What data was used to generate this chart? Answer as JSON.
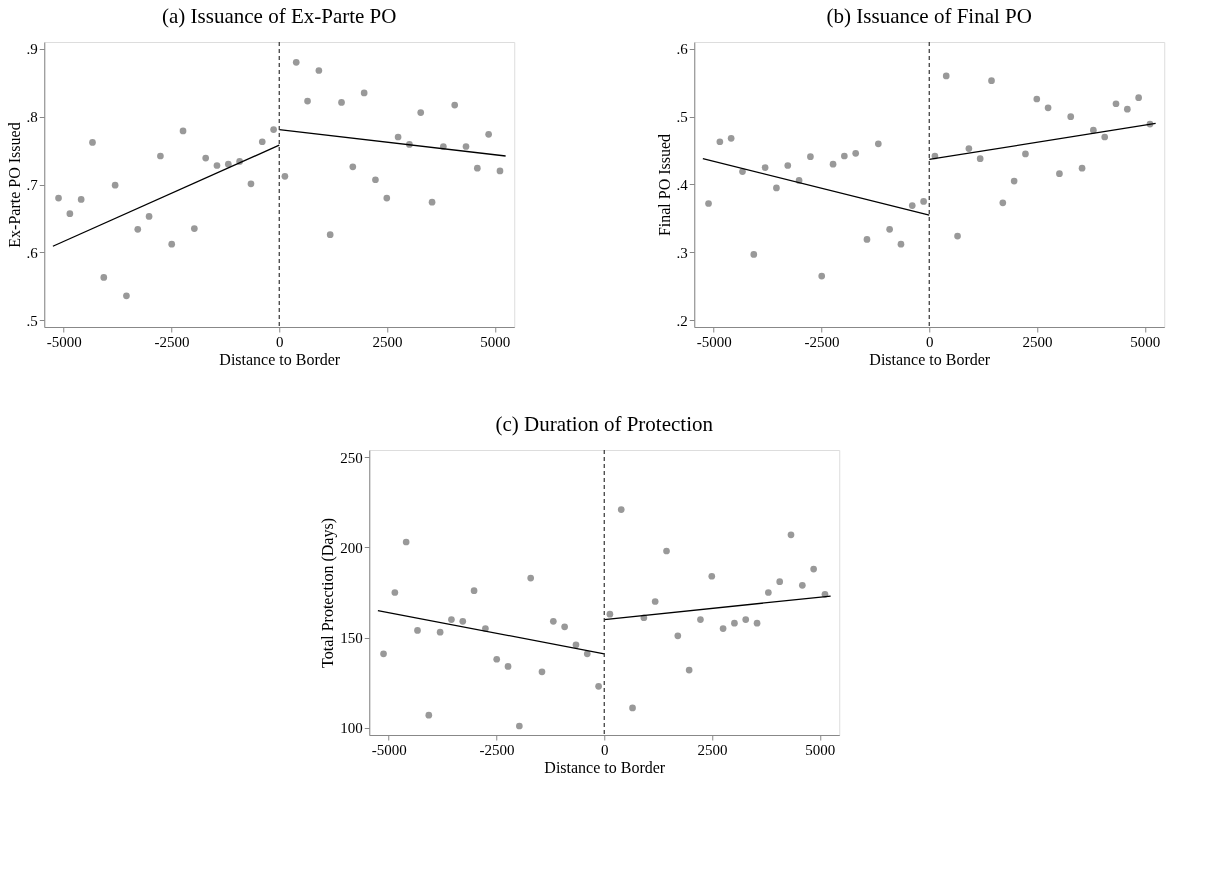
{
  "chart_data": [
    {
      "type": "scatter",
      "title": "(a) Issuance of Ex-Parte PO",
      "xlabel": "Distance to Border",
      "ylabel": "Ex-Parte PO Issued",
      "xlim": [
        -5450,
        5450
      ],
      "ylim": [
        0.49,
        0.91
      ],
      "xticks": [
        -5000,
        -2500,
        0,
        2500,
        5000
      ],
      "yticks": [
        {
          "value": 0.5,
          "label": ".5"
        },
        {
          "value": 0.6,
          "label": ".6"
        },
        {
          "value": 0.7,
          "label": ".7"
        },
        {
          "value": 0.8,
          "label": ".8"
        },
        {
          "value": 0.9,
          "label": ".9"
        }
      ],
      "grid": false,
      "marker": "circle",
      "series": [
        {
          "type": "scatter",
          "color": "#999999",
          "x": [
            -5119,
            -4856,
            -4594,
            -4331,
            -4069,
            -3806,
            -3544,
            -3281,
            -3019,
            -2756,
            -2494,
            -2231,
            -1969,
            -1706,
            -1444,
            -1181,
            -919,
            -656,
            -394,
            -131,
            131,
            394,
            656,
            919,
            1181,
            1444,
            1706,
            1969,
            2231,
            2494,
            2756,
            3019,
            3281,
            3544,
            3806,
            4069,
            4331,
            4594,
            4856,
            5119
          ],
          "values": [
            0.68,
            0.657,
            0.678,
            0.762,
            0.563,
            0.699,
            0.536,
            0.634,
            0.653,
            0.742,
            0.612,
            0.779,
            0.635,
            0.739,
            0.728,
            0.73,
            0.734,
            0.701,
            0.763,
            0.781,
            0.712,
            0.88,
            0.823,
            0.868,
            0.626,
            0.821,
            0.726,
            0.835,
            0.707,
            0.68,
            0.77,
            0.759,
            0.806,
            0.674,
            0.756,
            0.817,
            0.756,
            0.724,
            0.774,
            0.72
          ]
        },
        {
          "type": "line",
          "color": "#000000",
          "line_style": "solid",
          "marker": "none",
          "x": [
            -5250,
            0
          ],
          "values": [
            0.609,
            0.758
          ]
        },
        {
          "type": "line",
          "color": "#000000",
          "line_style": "solid",
          "marker": "none",
          "x": [
            0,
            5250
          ],
          "values": [
            0.781,
            0.742
          ]
        }
      ],
      "ref_lines": [
        {
          "axis": "x",
          "value": 0,
          "color": "#333333",
          "line_style": "dashed"
        }
      ]
    },
    {
      "type": "scatter",
      "title": "(b) Issuance of Final PO",
      "xlabel": "Distance to Border",
      "ylabel": "Final PO Issued",
      "xlim": [
        -5450,
        5450
      ],
      "ylim": [
        0.19,
        0.61
      ],
      "xticks": [
        -5000,
        -2500,
        0,
        2500,
        5000
      ],
      "yticks": [
        {
          "value": 0.2,
          "label": ".2"
        },
        {
          "value": 0.3,
          "label": ".3"
        },
        {
          "value": 0.4,
          "label": ".4"
        },
        {
          "value": 0.5,
          "label": ".5"
        },
        {
          "value": 0.6,
          "label": ".6"
        }
      ],
      "grid": false,
      "marker": "circle",
      "series": [
        {
          "type": "scatter",
          "color": "#999999",
          "x": [
            -5119,
            -4856,
            -4594,
            -4331,
            -4069,
            -3806,
            -3544,
            -3281,
            -3019,
            -2756,
            -2494,
            -2231,
            -1969,
            -1706,
            -1444,
            -1181,
            -919,
            -656,
            -394,
            -131,
            131,
            394,
            656,
            919,
            1181,
            1444,
            1706,
            1969,
            2231,
            2494,
            2756,
            3019,
            3281,
            3544,
            3806,
            4069,
            4331,
            4594,
            4856,
            5119
          ],
          "values": [
            0.372,
            0.463,
            0.468,
            0.419,
            0.297,
            0.425,
            0.395,
            0.428,
            0.406,
            0.441,
            0.265,
            0.43,
            0.442,
            0.446,
            0.319,
            0.46,
            0.334,
            0.312,
            0.369,
            0.375,
            0.442,
            0.56,
            0.324,
            0.453,
            0.438,
            0.553,
            0.373,
            0.405,
            0.445,
            0.526,
            0.513,
            0.416,
            0.5,
            0.424,
            0.48,
            0.47,
            0.519,
            0.511,
            0.528,
            0.489
          ]
        },
        {
          "type": "line",
          "color": "#000000",
          "line_style": "solid",
          "marker": "none",
          "x": [
            -5250,
            0
          ],
          "values": [
            0.438,
            0.355
          ]
        },
        {
          "type": "line",
          "color": "#000000",
          "line_style": "solid",
          "marker": "none",
          "x": [
            0,
            5250
          ],
          "values": [
            0.437,
            0.49
          ]
        }
      ],
      "ref_lines": [
        {
          "axis": "x",
          "value": 0,
          "color": "#333333",
          "line_style": "dashed"
        }
      ]
    },
    {
      "type": "scatter",
      "title": "(c) Duration of Protection",
      "xlabel": "Distance to Border",
      "ylabel": "Total Protection (Days)",
      "xlim": [
        -5450,
        5450
      ],
      "ylim": [
        96,
        254
      ],
      "xticks": [
        -5000,
        -2500,
        0,
        2500,
        5000
      ],
      "yticks": [
        100,
        150,
        200,
        250
      ],
      "grid": false,
      "marker": "circle",
      "series": [
        {
          "type": "scatter",
          "color": "#999999",
          "x": [
            -5119,
            -4856,
            -4594,
            -4331,
            -4069,
            -3806,
            -3544,
            -3281,
            -3019,
            -2756,
            -2494,
            -2231,
            -1969,
            -1706,
            -1444,
            -1181,
            -919,
            -656,
            -394,
            -131,
            131,
            394,
            656,
            919,
            1181,
            1444,
            1706,
            1969,
            2231,
            2494,
            2756,
            3019,
            3281,
            3544,
            3806,
            4069,
            4331,
            4594,
            4856,
            5119
          ],
          "values": [
            141,
            175,
            203,
            154,
            107,
            153,
            160,
            159,
            176,
            155,
            138,
            134,
            101,
            183,
            131,
            159,
            156,
            146,
            141,
            123,
            163,
            221,
            111,
            161,
            170,
            198,
            151,
            132,
            160,
            184,
            155,
            158,
            160,
            158,
            175,
            181,
            207,
            179,
            188,
            174
          ]
        },
        {
          "type": "line",
          "color": "#000000",
          "line_style": "solid",
          "marker": "none",
          "x": [
            -5250,
            0
          ],
          "values": [
            165,
            141
          ]
        },
        {
          "type": "line",
          "color": "#000000",
          "line_style": "solid",
          "marker": "none",
          "x": [
            0,
            5250
          ],
          "values": [
            160,
            173
          ]
        }
      ],
      "ref_lines": [
        {
          "axis": "x",
          "value": 0,
          "color": "#333333",
          "line_style": "dashed"
        }
      ]
    }
  ]
}
